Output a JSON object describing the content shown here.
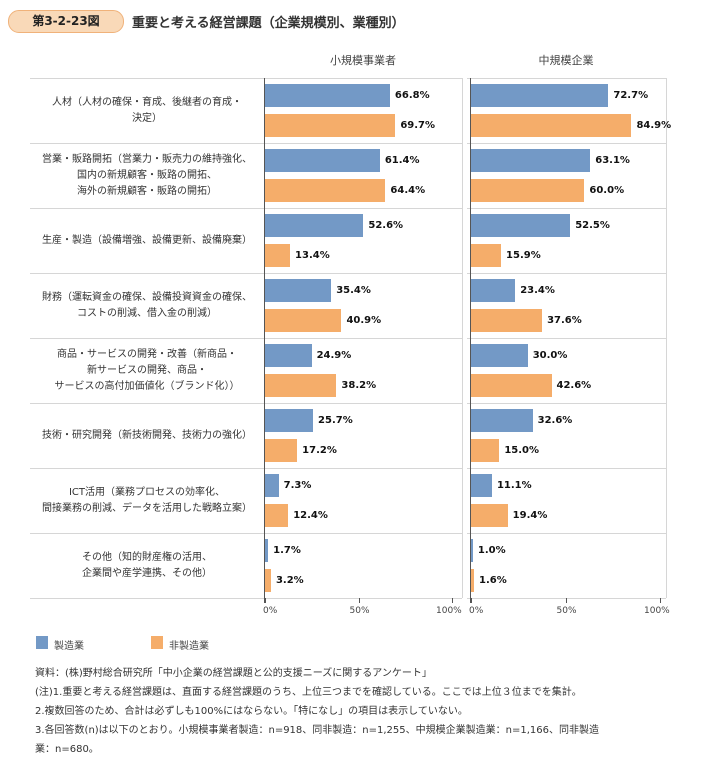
{
  "figure": {
    "number": "第3-2-23図",
    "title": "重要と考える経営課題（企業規模別、業種別）"
  },
  "colors": {
    "manufacturing": "#7399c6",
    "non_manufacturing": "#f5ad6a"
  },
  "chart_data": {
    "type": "bar",
    "orientation": "horizontal",
    "title": "重要と考える経営課題（企業規模別、業種別）",
    "categories": [
      "人材（人材の確保・育成、後継者の育成・\n決定）",
      "営業・販路開拓（営業力・販売力の維持強化、\n国内の新規顧客・販路の開拓、\n海外の新規顧客・販路の開拓）",
      "生産・製造（設備増強、設備更新、設備廃棄）",
      "財務（運転資金の確保、設備投資資金の確保、\nコストの削減、借入金の削減）",
      "商品・サービスの開発・改善（新商品・\n新サービスの開発、商品・\nサービスの高付加価値化（ブランド化））",
      "技術・研究開発（新技術開発、技術力の強化）",
      "ICT活用（業務プロセスの効率化、\n間接業務の削減、データを活用した戦略立案）",
      "その他（知的財産権の活用、\n企業間や産学連携、その他）"
    ],
    "panels": [
      {
        "title": "小規模事業者",
        "series": [
          {
            "name": "製造業",
            "values": [
              66.8,
              61.4,
              52.6,
              35.4,
              24.9,
              25.7,
              7.3,
              1.7
            ]
          },
          {
            "name": "非製造業",
            "values": [
              69.7,
              64.4,
              13.4,
              40.9,
              38.2,
              17.2,
              12.4,
              3.2
            ]
          }
        ]
      },
      {
        "title": "中規模企業",
        "series": [
          {
            "name": "製造業",
            "values": [
              72.7,
              63.1,
              52.5,
              23.4,
              30.0,
              32.6,
              11.1,
              1.0
            ]
          },
          {
            "name": "非製造業",
            "values": [
              84.9,
              60.0,
              15.9,
              37.6,
              42.6,
              15.0,
              19.4,
              1.6
            ]
          }
        ]
      }
    ],
    "xlim": [
      0,
      100
    ],
    "xticks": [
      "0%",
      "50%",
      "100%"
    ],
    "legend": {
      "position": "bottom-left",
      "entries": [
        "製造業",
        "非製造業"
      ]
    },
    "grid": false
  },
  "notes": [
    "資料：(株)野村総合研究所「中小企業の経営課題と公的支援ニーズに関するアンケート」",
    "(注)1.重要と考える経営課題は、直面する経営課題のうち、上位三つまでを確認している。ここでは上位３位までを集計。",
    "2.複数回答のため、合計は必ずしも100%にはならない。「特になし」の項目は表示していない。",
    "3.各回答数(n)は以下のとおり。小規模事業者製造：n=918、同非製造：n=1,255、中規模企業製造業：n=1,166、同非製造",
    "業：n=680。"
  ]
}
